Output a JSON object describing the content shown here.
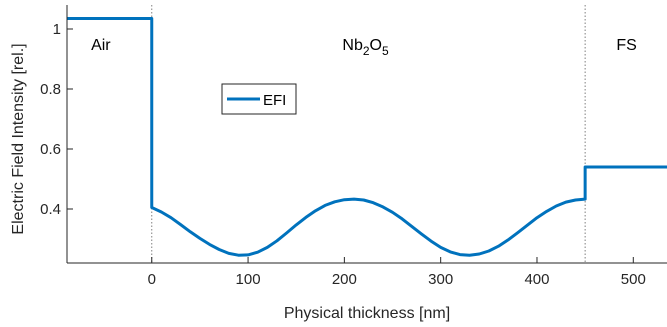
{
  "chart_data": {
    "type": "line",
    "title": "",
    "xlabel": "Physical thickness [nm]",
    "ylabel": "Electric Field Intensity [rel.]",
    "xlim": [
      -88,
      535
    ],
    "ylim": [
      0.22,
      1.08
    ],
    "xticks": [
      0,
      100,
      200,
      300,
      400,
      500
    ],
    "yticks": [
      0.4,
      0.6,
      0.8,
      1
    ],
    "ytick_labels": [
      "0.4",
      "0.6",
      "0.8",
      "1"
    ],
    "grid": false,
    "legend": {
      "position": "upper-left-inside",
      "entries": [
        "EFI"
      ]
    },
    "boundaries": [
      0,
      450
    ],
    "regions": [
      {
        "name": "Air",
        "base": "Air",
        "sub": "",
        "tail": ""
      },
      {
        "name": "Nb2O5",
        "base": "Nb",
        "sub": "2",
        "tail": "O",
        "sub2": "5"
      },
      {
        "name": "FS",
        "base": "FS",
        "sub": "",
        "tail": ""
      }
    ],
    "series": [
      {
        "name": "EFI",
        "color": "#0072BD",
        "points": [
          [
            -88,
            1.035
          ],
          [
            0,
            1.035
          ],
          [
            0,
            0.405
          ],
          [
            10,
            0.39
          ],
          [
            20,
            0.371
          ],
          [
            30,
            0.348
          ],
          [
            40,
            0.324
          ],
          [
            50,
            0.302
          ],
          [
            60,
            0.282
          ],
          [
            70,
            0.265
          ],
          [
            80,
            0.252
          ],
          [
            90,
            0.246
          ],
          [
            100,
            0.247
          ],
          [
            110,
            0.256
          ],
          [
            120,
            0.272
          ],
          [
            130,
            0.294
          ],
          [
            140,
            0.32
          ],
          [
            150,
            0.347
          ],
          [
            160,
            0.372
          ],
          [
            170,
            0.394
          ],
          [
            180,
            0.412
          ],
          [
            190,
            0.424
          ],
          [
            200,
            0.431
          ],
          [
            210,
            0.433
          ],
          [
            220,
            0.43
          ],
          [
            230,
            0.421
          ],
          [
            240,
            0.407
          ],
          [
            250,
            0.389
          ],
          [
            260,
            0.367
          ],
          [
            270,
            0.342
          ],
          [
            280,
            0.317
          ],
          [
            290,
            0.293
          ],
          [
            300,
            0.272
          ],
          [
            310,
            0.257
          ],
          [
            320,
            0.248
          ],
          [
            330,
            0.246
          ],
          [
            340,
            0.25
          ],
          [
            350,
            0.26
          ],
          [
            360,
            0.276
          ],
          [
            370,
            0.297
          ],
          [
            380,
            0.321
          ],
          [
            390,
            0.346
          ],
          [
            400,
            0.371
          ],
          [
            410,
            0.392
          ],
          [
            420,
            0.41
          ],
          [
            430,
            0.423
          ],
          [
            440,
            0.43
          ],
          [
            450,
            0.433
          ],
          [
            450,
            0.54
          ],
          [
            535,
            0.54
          ]
        ]
      }
    ]
  }
}
